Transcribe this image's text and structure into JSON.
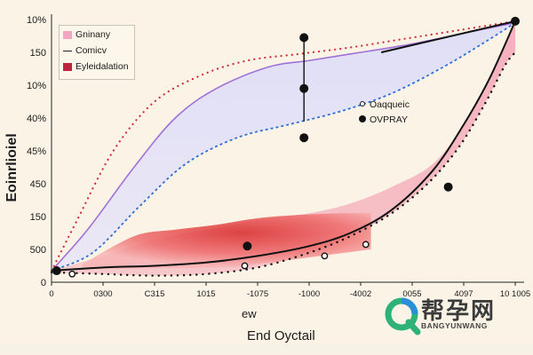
{
  "chart_data": {
    "type": "area",
    "title": "",
    "xlabel": "End Oyctail",
    "xlabel_secondary": "ew",
    "ylabel": "Eoinrlioiel",
    "x_ticks": [
      "0",
      "0300",
      "C315",
      "1015",
      "-1075",
      "-1000",
      "-4002",
      "0055",
      "4097",
      "10 1005"
    ],
    "y_ticks": [
      "10%",
      "150",
      "10%",
      "40%",
      "45%",
      "450",
      "150",
      "500",
      "0"
    ],
    "xlim": [
      0,
      9
    ],
    "ylim": [
      0,
      8
    ],
    "legend_position": "top-left",
    "legend": [
      {
        "label": "Gninany",
        "style": "pink-swatch",
        "color": "#f2a6c2"
      },
      {
        "label": "Comicv",
        "style": "line",
        "color": "#222222"
      },
      {
        "label": "Eyleidalation",
        "style": "red-swatch",
        "color": "#c0243c"
      }
    ],
    "annotations": [
      {
        "label": "Oaqqueic",
        "marker": "open-circle"
      },
      {
        "label": "OVPRAY",
        "marker": "filled-circle"
      }
    ],
    "series": [
      {
        "style": "purple-line",
        "color": "#a070d8",
        "x": [
          0,
          0.7,
          1.6,
          2.4,
          3.2,
          4.2,
          5.0,
          5.8,
          6.8,
          7.6,
          8.2,
          9.0
        ],
        "y": [
          0.35,
          1.6,
          3.5,
          5.0,
          5.9,
          6.55,
          6.75,
          6.95,
          7.2,
          7.45,
          7.65,
          7.9
        ]
      },
      {
        "style": "upper-red-dots",
        "color": "#d42a3a",
        "x": [
          0,
          0.5,
          1.2,
          2.0,
          2.9,
          3.8,
          4.8,
          5.8,
          6.8,
          7.6,
          8.2,
          9.0
        ],
        "y": [
          0.35,
          1.9,
          4.0,
          5.5,
          6.3,
          6.75,
          6.95,
          7.15,
          7.4,
          7.6,
          7.75,
          7.95
        ]
      },
      {
        "style": "blue-dashed",
        "color": "#2f6fd6",
        "x": [
          0,
          0.8,
          1.7,
          2.6,
          3.6,
          4.6,
          5.6,
          6.6,
          7.6,
          8.4,
          9.0
        ],
        "y": [
          0.35,
          0.9,
          2.3,
          3.6,
          4.4,
          4.8,
          5.2,
          5.75,
          6.55,
          7.3,
          7.9
        ]
      },
      {
        "style": "black-line",
        "color": "#111111",
        "x": [
          0,
          1.0,
          2.0,
          3.0,
          4.0,
          5.0,
          5.8,
          6.6,
          7.4,
          8.0,
          8.5,
          9.0
        ],
        "y": [
          0.35,
          0.45,
          0.5,
          0.6,
          0.8,
          1.1,
          1.5,
          2.2,
          3.4,
          4.8,
          6.2,
          7.95
        ]
      },
      {
        "style": "lower-black-dots",
        "color": "#111111",
        "x": [
          0,
          1.0,
          2.0,
          3.0,
          4.0,
          5.0,
          5.8,
          6.6,
          7.3,
          7.9,
          8.4,
          8.8,
          9.0
        ],
        "y": [
          0.3,
          0.25,
          0.2,
          0.25,
          0.45,
          0.9,
          1.4,
          2.1,
          3.0,
          4.1,
          5.4,
          6.6,
          7.0
        ]
      },
      {
        "style": "red-area",
        "color": "#e23c3c",
        "x": [
          0.6,
          1.6,
          2.4,
          3.2,
          4.0,
          4.8,
          5.6,
          6.2
        ],
        "y": [
          0.55,
          1.4,
          1.6,
          1.75,
          1.95,
          2.05,
          2.1,
          2.1
        ]
      },
      {
        "style": "pink-area-top",
        "color": "#f4a6b8",
        "x": [
          0,
          1.0,
          2.0,
          3.0,
          4.0,
          5.0,
          5.8,
          6.6,
          7.4,
          8.0,
          8.5,
          9.0
        ],
        "y": [
          0.35,
          0.8,
          1.3,
          1.6,
          1.9,
          2.1,
          2.4,
          2.9,
          3.6,
          4.8,
          6.2,
          7.95
        ]
      }
    ],
    "points": [
      {
        "x": 4.9,
        "y": 7.45,
        "marker": "filled"
      },
      {
        "x": 4.9,
        "y": 5.9,
        "marker": "filled"
      },
      {
        "x": 4.9,
        "y": 4.4,
        "marker": "filled"
      },
      {
        "x": 3.8,
        "y": 1.1,
        "marker": "filled"
      },
      {
        "x": 7.7,
        "y": 2.9,
        "marker": "filled"
      },
      {
        "x": 9.0,
        "y": 7.95,
        "marker": "filled"
      },
      {
        "x": 0.1,
        "y": 0.35,
        "marker": "filled"
      },
      {
        "x": 3.75,
        "y": 0.5,
        "marker": "open"
      },
      {
        "x": 5.3,
        "y": 0.8,
        "marker": "open"
      },
      {
        "x": 6.1,
        "y": 1.15,
        "marker": "open"
      },
      {
        "x": 0.4,
        "y": 0.25,
        "marker": "open"
      }
    ]
  },
  "watermark": {
    "title": "帮孕网",
    "subtitle": "BANGYUNWANG"
  }
}
